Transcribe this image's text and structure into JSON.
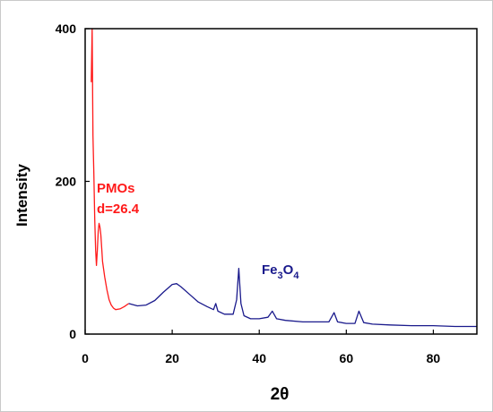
{
  "chart_data": {
    "type": "line",
    "xlabel_main": "2",
    "xlabel_symbol": "θ",
    "ylabel": "Intensity",
    "xlim": [
      0,
      90
    ],
    "ylim": [
      0,
      400
    ],
    "x_ticks": [
      "0",
      "20",
      "40",
      "60",
      "80"
    ],
    "y_ticks": [
      "0",
      "200",
      "400"
    ],
    "grid": false,
    "series": [
      {
        "color": "#ff1a1a",
        "x": [
          1.4,
          1.6,
          1.8,
          2.0,
          2.2,
          2.4,
          2.6,
          2.8,
          3.0,
          3.2,
          3.4,
          3.6,
          3.8,
          4.0,
          4.5,
          5.0,
          5.5,
          6.0,
          6.5,
          7.0,
          8.0,
          9.0,
          10.0
        ],
        "y": [
          330,
          400,
          260,
          210,
          150,
          110,
          90,
          110,
          135,
          145,
          140,
          130,
          112,
          95,
          75,
          58,
          45,
          38,
          34,
          32,
          33,
          36,
          40
        ]
      },
      {
        "color": "#1a1a8c",
        "x": [
          10,
          12,
          14,
          16,
          18,
          20,
          21,
          22,
          24,
          26,
          28,
          29.5,
          30,
          30.5,
          32,
          34,
          34.8,
          35.3,
          35.8,
          36.5,
          38,
          40,
          42,
          43,
          44,
          46,
          50,
          54,
          56,
          57.2,
          58,
          60,
          62,
          62.9,
          64,
          66,
          70,
          75,
          80,
          85,
          90
        ],
        "y": [
          40,
          37,
          38,
          44,
          55,
          65,
          66,
          62,
          52,
          42,
          36,
          32,
          40,
          30,
          26,
          26,
          45,
          86,
          40,
          24,
          20,
          20,
          22,
          30,
          20,
          18,
          16,
          16,
          16,
          28,
          16,
          14,
          14,
          30,
          15,
          13,
          12,
          11,
          11,
          10,
          10
        ]
      }
    ],
    "annotations": [
      {
        "text_line1": "PMOs",
        "text_line2": "d=26.4",
        "color": "#ff1a1a"
      },
      {
        "main": "Fe",
        "sub1": "3",
        "mid": "O",
        "sub2": "4",
        "color": "#1a1a8c"
      }
    ]
  }
}
